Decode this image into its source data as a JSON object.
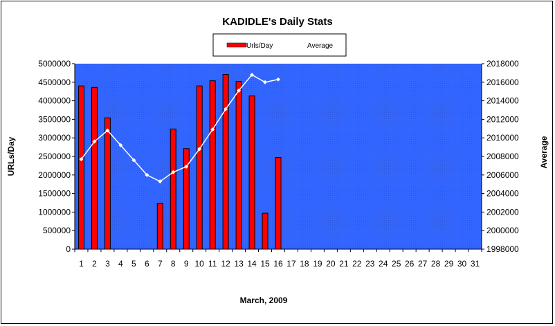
{
  "chart_data": {
    "type": "bar",
    "title": "KADIDLE's Daily Stats",
    "xlabel": "March, 2009",
    "ylabel": "URLs/Day",
    "y2label": "Average",
    "categories": [
      "1",
      "2",
      "3",
      "4",
      "5",
      "6",
      "7",
      "8",
      "9",
      "10",
      "11",
      "12",
      "13",
      "14",
      "15",
      "16",
      "17",
      "18",
      "19",
      "20",
      "21",
      "22",
      "23",
      "24",
      "25",
      "26",
      "27",
      "28",
      "29",
      "30",
      "31"
    ],
    "ylim": [
      0,
      5000000
    ],
    "y_ticks": [
      "0",
      "500000",
      "1000000",
      "1500000",
      "2000000",
      "2500000",
      "3000000",
      "3500000",
      "4000000",
      "4500000",
      "5000000"
    ],
    "y2lim": [
      1998000,
      2018000
    ],
    "y2_ticks": [
      "1998000",
      "2000000",
      "2002000",
      "2004000",
      "2006000",
      "2008000",
      "2010000",
      "2012000",
      "2014000",
      "2016000",
      "2018000"
    ],
    "series": [
      {
        "name": "Urls/Day",
        "type": "bar",
        "color": "#ff0000",
        "values": [
          4400000,
          4360000,
          3540000,
          null,
          null,
          null,
          1240000,
          3240000,
          2710000,
          4400000,
          4540000,
          4710000,
          4520000,
          4130000,
          970000,
          2470000,
          null,
          null,
          null,
          null,
          null,
          null,
          null,
          null,
          null,
          null,
          null,
          null,
          null,
          null,
          null
        ]
      },
      {
        "name": "Average",
        "type": "line",
        "axis": "right",
        "color": "#ffffff",
        "values": [
          2007700,
          2009600,
          2010800,
          2009200,
          2007600,
          2006000,
          2005300,
          2006300,
          2006900,
          2008800,
          2010900,
          2013100,
          2015100,
          2016800,
          2016000,
          2016300,
          null,
          null,
          null,
          null,
          null,
          null,
          null,
          null,
          null,
          null,
          null,
          null,
          null,
          null,
          null
        ]
      }
    ],
    "plot_background": "#3366ff",
    "legend_position": "top"
  }
}
